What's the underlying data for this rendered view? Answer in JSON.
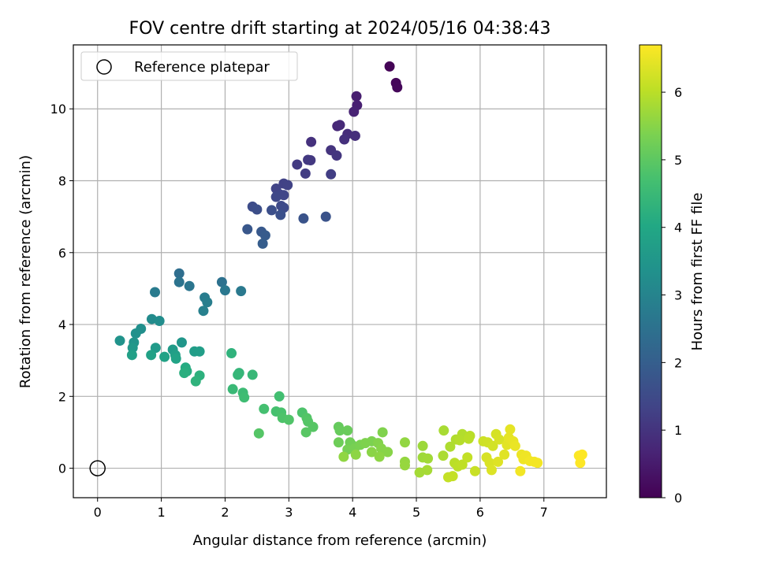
{
  "chart_data": {
    "type": "scatter",
    "title": "FOV centre drift starting at 2024/05/16 04:38:43",
    "xlabel": "Angular distance from reference (arcmin)",
    "ylabel": "Rotation from reference (arcmin)",
    "xlim": [
      -0.38,
      7.98
    ],
    "ylim": [
      -0.82,
      11.78
    ],
    "xticks": [
      0,
      1,
      2,
      3,
      4,
      5,
      6,
      7
    ],
    "yticks": [
      0,
      2,
      4,
      6,
      8,
      10
    ],
    "grid": true,
    "legend": {
      "placement": "top-left",
      "entries": [
        "Reference platepar"
      ]
    },
    "reference_point": {
      "x": 0,
      "y": 0,
      "label": "Reference platepar"
    },
    "colorbar": {
      "label": "Hours from first FF file",
      "colormap": "viridis",
      "range": [
        0,
        6.7
      ],
      "ticks": [
        0,
        1,
        2,
        3,
        4,
        5,
        6
      ]
    },
    "points": [
      {
        "x": 4.58,
        "y": 11.18,
        "t": 0.05
      },
      {
        "x": 4.68,
        "y": 10.72,
        "t": 0.1
      },
      {
        "x": 4.7,
        "y": 10.6,
        "t": 0.12
      },
      {
        "x": 4.06,
        "y": 10.35,
        "t": 0.55
      },
      {
        "x": 4.07,
        "y": 10.1,
        "t": 0.6
      },
      {
        "x": 4.02,
        "y": 9.92,
        "t": 0.65
      },
      {
        "x": 3.76,
        "y": 9.52,
        "t": 0.75
      },
      {
        "x": 3.8,
        "y": 9.55,
        "t": 0.8
      },
      {
        "x": 3.92,
        "y": 9.3,
        "t": 0.85
      },
      {
        "x": 4.04,
        "y": 9.25,
        "t": 0.9
      },
      {
        "x": 3.87,
        "y": 9.15,
        "t": 0.92
      },
      {
        "x": 3.35,
        "y": 9.08,
        "t": 0.95
      },
      {
        "x": 3.66,
        "y": 8.85,
        "t": 1.0
      },
      {
        "x": 3.75,
        "y": 8.7,
        "t": 1.05
      },
      {
        "x": 3.34,
        "y": 8.57,
        "t": 1.1
      },
      {
        "x": 3.3,
        "y": 8.58,
        "t": 1.12
      },
      {
        "x": 3.13,
        "y": 8.45,
        "t": 1.15
      },
      {
        "x": 3.26,
        "y": 8.2,
        "t": 1.2
      },
      {
        "x": 3.66,
        "y": 8.18,
        "t": 1.22
      },
      {
        "x": 2.92,
        "y": 7.92,
        "t": 1.3
      },
      {
        "x": 2.98,
        "y": 7.88,
        "t": 1.32
      },
      {
        "x": 2.8,
        "y": 7.78,
        "t": 1.35
      },
      {
        "x": 2.86,
        "y": 7.62,
        "t": 1.4
      },
      {
        "x": 2.92,
        "y": 7.6,
        "t": 1.42
      },
      {
        "x": 2.8,
        "y": 7.55,
        "t": 1.45
      },
      {
        "x": 2.88,
        "y": 7.3,
        "t": 1.5
      },
      {
        "x": 2.92,
        "y": 7.25,
        "t": 1.52
      },
      {
        "x": 2.43,
        "y": 7.28,
        "t": 1.55
      },
      {
        "x": 2.5,
        "y": 7.2,
        "t": 1.6
      },
      {
        "x": 2.73,
        "y": 7.18,
        "t": 1.62
      },
      {
        "x": 2.87,
        "y": 7.05,
        "t": 1.65
      },
      {
        "x": 3.58,
        "y": 7.0,
        "t": 1.7
      },
      {
        "x": 3.23,
        "y": 6.95,
        "t": 1.72
      },
      {
        "x": 2.35,
        "y": 6.65,
        "t": 1.8
      },
      {
        "x": 2.57,
        "y": 6.58,
        "t": 1.85
      },
      {
        "x": 2.63,
        "y": 6.48,
        "t": 1.9
      },
      {
        "x": 2.59,
        "y": 6.25,
        "t": 1.95
      },
      {
        "x": 1.28,
        "y": 5.42,
        "t": 2.4
      },
      {
        "x": 1.95,
        "y": 5.18,
        "t": 2.5
      },
      {
        "x": 1.28,
        "y": 5.18,
        "t": 2.55
      },
      {
        "x": 1.44,
        "y": 5.07,
        "t": 2.6
      },
      {
        "x": 2.0,
        "y": 4.95,
        "t": 2.65
      },
      {
        "x": 2.25,
        "y": 4.93,
        "t": 2.7
      },
      {
        "x": 0.9,
        "y": 4.9,
        "t": 2.75
      },
      {
        "x": 1.68,
        "y": 4.75,
        "t": 2.8
      },
      {
        "x": 1.72,
        "y": 4.62,
        "t": 2.85
      },
      {
        "x": 1.66,
        "y": 4.38,
        "t": 2.9
      },
      {
        "x": 0.85,
        "y": 4.15,
        "t": 3.2
      },
      {
        "x": 0.97,
        "y": 4.1,
        "t": 3.25
      },
      {
        "x": 0.68,
        "y": 3.88,
        "t": 3.3
      },
      {
        "x": 0.6,
        "y": 3.75,
        "t": 3.35
      },
      {
        "x": 0.35,
        "y": 3.55,
        "t": 3.4
      },
      {
        "x": 0.57,
        "y": 3.5,
        "t": 3.45
      },
      {
        "x": 1.32,
        "y": 3.5,
        "t": 3.5
      },
      {
        "x": 0.55,
        "y": 3.35,
        "t": 3.55
      },
      {
        "x": 0.91,
        "y": 3.35,
        "t": 3.6
      },
      {
        "x": 1.18,
        "y": 3.3,
        "t": 3.65
      },
      {
        "x": 1.52,
        "y": 3.25,
        "t": 3.7
      },
      {
        "x": 1.6,
        "y": 3.25,
        "t": 3.72
      },
      {
        "x": 1.22,
        "y": 3.15,
        "t": 3.75
      },
      {
        "x": 0.54,
        "y": 3.15,
        "t": 3.8
      },
      {
        "x": 0.84,
        "y": 3.15,
        "t": 3.82
      },
      {
        "x": 1.05,
        "y": 3.1,
        "t": 3.85
      },
      {
        "x": 1.23,
        "y": 3.05,
        "t": 3.88
      },
      {
        "x": 1.38,
        "y": 2.8,
        "t": 4.1
      },
      {
        "x": 1.4,
        "y": 2.7,
        "t": 4.15
      },
      {
        "x": 1.36,
        "y": 2.65,
        "t": 4.2
      },
      {
        "x": 1.6,
        "y": 2.58,
        "t": 4.25
      },
      {
        "x": 1.54,
        "y": 2.42,
        "t": 4.3
      },
      {
        "x": 2.1,
        "y": 3.2,
        "t": 4.3
      },
      {
        "x": 2.22,
        "y": 2.65,
        "t": 4.4
      },
      {
        "x": 2.2,
        "y": 2.6,
        "t": 4.42
      },
      {
        "x": 2.43,
        "y": 2.6,
        "t": 4.45
      },
      {
        "x": 2.12,
        "y": 2.2,
        "t": 4.5
      },
      {
        "x": 2.28,
        "y": 2.1,
        "t": 4.55
      },
      {
        "x": 2.3,
        "y": 1.97,
        "t": 4.6
      },
      {
        "x": 2.85,
        "y": 2.0,
        "t": 4.65
      },
      {
        "x": 2.61,
        "y": 1.65,
        "t": 4.7
      },
      {
        "x": 2.8,
        "y": 1.58,
        "t": 4.72
      },
      {
        "x": 2.88,
        "y": 1.55,
        "t": 4.75
      },
      {
        "x": 3.21,
        "y": 1.55,
        "t": 4.8
      },
      {
        "x": 2.9,
        "y": 1.4,
        "t": 4.82
      },
      {
        "x": 3.0,
        "y": 1.35,
        "t": 4.85
      },
      {
        "x": 3.28,
        "y": 1.4,
        "t": 4.88
      },
      {
        "x": 3.3,
        "y": 1.3,
        "t": 4.9
      },
      {
        "x": 3.38,
        "y": 1.15,
        "t": 4.92
      },
      {
        "x": 3.27,
        "y": 1.0,
        "t": 4.95
      },
      {
        "x": 2.53,
        "y": 0.97,
        "t": 4.9
      },
      {
        "x": 3.78,
        "y": 1.15,
        "t": 5.1
      },
      {
        "x": 3.8,
        "y": 1.05,
        "t": 5.12
      },
      {
        "x": 3.92,
        "y": 1.05,
        "t": 5.15
      },
      {
        "x": 3.78,
        "y": 0.72,
        "t": 5.2
      },
      {
        "x": 3.96,
        "y": 0.72,
        "t": 5.22
      },
      {
        "x": 3.99,
        "y": 0.65,
        "t": 5.25
      },
      {
        "x": 3.92,
        "y": 0.52,
        "t": 5.3
      },
      {
        "x": 4.03,
        "y": 0.55,
        "t": 5.32
      },
      {
        "x": 4.12,
        "y": 0.65,
        "t": 5.35
      },
      {
        "x": 4.3,
        "y": 0.75,
        "t": 5.38
      },
      {
        "x": 4.2,
        "y": 0.7,
        "t": 5.4
      },
      {
        "x": 4.47,
        "y": 1.0,
        "t": 5.42
      },
      {
        "x": 4.4,
        "y": 0.7,
        "t": 5.45
      },
      {
        "x": 4.45,
        "y": 0.55,
        "t": 5.48
      },
      {
        "x": 4.55,
        "y": 0.45,
        "t": 5.5
      },
      {
        "x": 4.3,
        "y": 0.45,
        "t": 5.52
      },
      {
        "x": 4.42,
        "y": 0.32,
        "t": 5.55
      },
      {
        "x": 4.05,
        "y": 0.38,
        "t": 5.55
      },
      {
        "x": 3.86,
        "y": 0.32,
        "t": 5.58
      },
      {
        "x": 4.82,
        "y": 0.72,
        "t": 5.6
      },
      {
        "x": 4.82,
        "y": 0.18,
        "t": 5.62
      },
      {
        "x": 4.82,
        "y": 0.08,
        "t": 5.65
      },
      {
        "x": 5.1,
        "y": 0.62,
        "t": 5.7
      },
      {
        "x": 5.1,
        "y": 0.3,
        "t": 5.72
      },
      {
        "x": 5.18,
        "y": 0.27,
        "t": 5.75
      },
      {
        "x": 5.05,
        "y": -0.12,
        "t": 5.78
      },
      {
        "x": 5.17,
        "y": -0.05,
        "t": 5.8
      },
      {
        "x": 5.43,
        "y": 1.05,
        "t": 5.82
      },
      {
        "x": 5.42,
        "y": 0.35,
        "t": 5.85
      },
      {
        "x": 5.53,
        "y": 0.6,
        "t": 5.88
      },
      {
        "x": 5.62,
        "y": 0.8,
        "t": 5.9
      },
      {
        "x": 5.72,
        "y": 0.95,
        "t": 5.92
      },
      {
        "x": 5.68,
        "y": 0.78,
        "t": 5.95
      },
      {
        "x": 5.84,
        "y": 0.9,
        "t": 5.98
      },
      {
        "x": 5.82,
        "y": 0.82,
        "t": 6.0
      },
      {
        "x": 5.6,
        "y": 0.15,
        "t": 6.0
      },
      {
        "x": 5.65,
        "y": 0.05,
        "t": 6.02
      },
      {
        "x": 5.72,
        "y": 0.1,
        "t": 6.05
      },
      {
        "x": 5.8,
        "y": 0.3,
        "t": 6.08
      },
      {
        "x": 5.57,
        "y": -0.22,
        "t": 6.1
      },
      {
        "x": 5.5,
        "y": -0.25,
        "t": 6.1
      },
      {
        "x": 5.92,
        "y": -0.08,
        "t": 6.15
      },
      {
        "x": 6.05,
        "y": 0.75,
        "t": 6.2
      },
      {
        "x": 6.12,
        "y": 0.72,
        "t": 6.22
      },
      {
        "x": 6.2,
        "y": 0.62,
        "t": 6.25
      },
      {
        "x": 6.25,
        "y": 0.95,
        "t": 6.28
      },
      {
        "x": 6.3,
        "y": 0.8,
        "t": 6.3
      },
      {
        "x": 6.1,
        "y": 0.3,
        "t": 6.3
      },
      {
        "x": 6.15,
        "y": 0.15,
        "t": 6.32
      },
      {
        "x": 6.18,
        "y": -0.05,
        "t": 6.35
      },
      {
        "x": 6.28,
        "y": 0.18,
        "t": 6.38
      },
      {
        "x": 6.38,
        "y": 0.38,
        "t": 6.4
      },
      {
        "x": 6.42,
        "y": 0.65,
        "t": 6.42
      },
      {
        "x": 6.45,
        "y": 0.85,
        "t": 6.45
      },
      {
        "x": 6.47,
        "y": 1.08,
        "t": 6.45
      },
      {
        "x": 6.52,
        "y": 0.75,
        "t": 6.48
      },
      {
        "x": 6.55,
        "y": 0.62,
        "t": 6.5
      },
      {
        "x": 6.65,
        "y": 0.38,
        "t": 6.52
      },
      {
        "x": 6.68,
        "y": 0.25,
        "t": 6.55
      },
      {
        "x": 6.72,
        "y": 0.35,
        "t": 6.55
      },
      {
        "x": 6.78,
        "y": 0.2,
        "t": 6.58
      },
      {
        "x": 6.85,
        "y": 0.18,
        "t": 6.6
      },
      {
        "x": 6.9,
        "y": 0.15,
        "t": 6.6
      },
      {
        "x": 6.63,
        "y": -0.08,
        "t": 6.58
      },
      {
        "x": 7.55,
        "y": 0.35,
        "t": 6.68
      },
      {
        "x": 7.6,
        "y": 0.38,
        "t": 6.7
      },
      {
        "x": 7.57,
        "y": 0.15,
        "t": 6.7
      }
    ]
  }
}
